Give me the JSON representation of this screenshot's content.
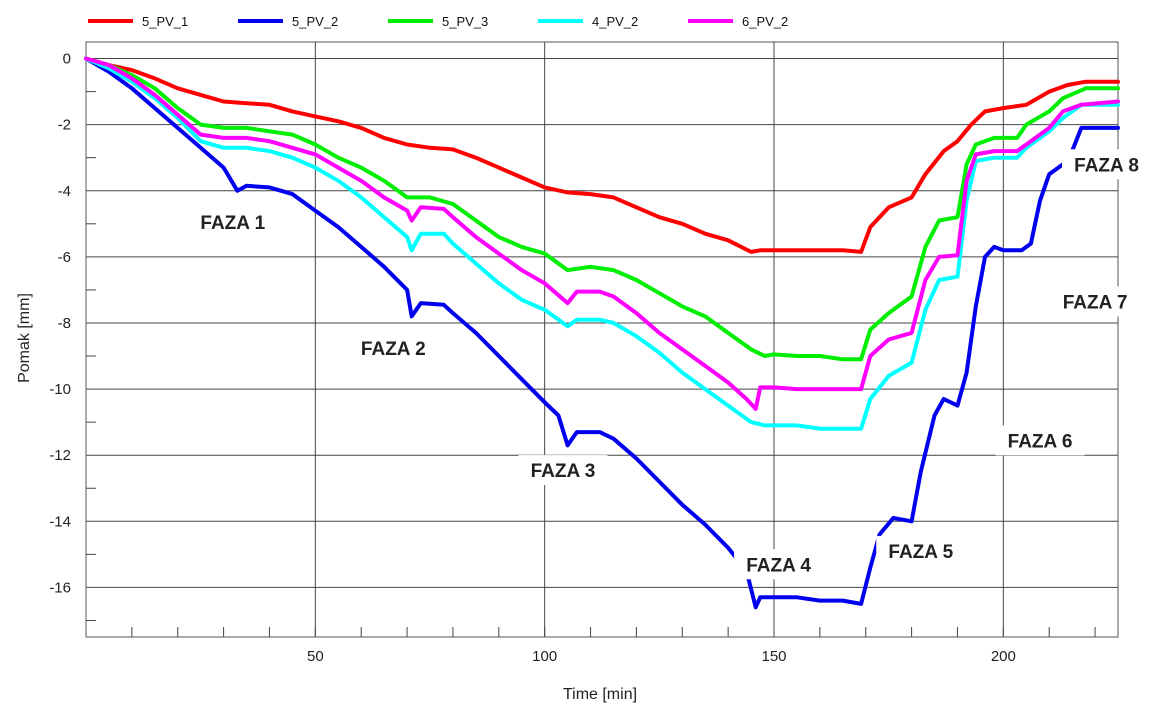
{
  "chart_data": {
    "type": "line",
    "xlabel": "Time  [min]",
    "ylabel": "Pomak  [mm]",
    "xlim": [
      0,
      225
    ],
    "ylim": [
      -17.5,
      0.5
    ],
    "x_ticks": [
      50,
      100,
      150,
      200
    ],
    "y_ticks": [
      0,
      -2,
      -4,
      -6,
      -8,
      -10,
      -12,
      -14,
      -16
    ],
    "grid": true,
    "legend_position": "top",
    "series": [
      {
        "name": "5_PV_1",
        "color": "#ff0000",
        "points": [
          [
            0,
            0
          ],
          [
            5,
            -0.2
          ],
          [
            10,
            -0.35
          ],
          [
            15,
            -0.6
          ],
          [
            20,
            -0.9
          ],
          [
            25,
            -1.1
          ],
          [
            30,
            -1.3
          ],
          [
            35,
            -1.35
          ],
          [
            40,
            -1.4
          ],
          [
            45,
            -1.6
          ],
          [
            50,
            -1.75
          ],
          [
            55,
            -1.9
          ],
          [
            60,
            -2.1
          ],
          [
            65,
            -2.4
          ],
          [
            70,
            -2.6
          ],
          [
            75,
            -2.7
          ],
          [
            80,
            -2.75
          ],
          [
            85,
            -3.0
          ],
          [
            90,
            -3.3
          ],
          [
            95,
            -3.6
          ],
          [
            100,
            -3.9
          ],
          [
            105,
            -4.05
          ],
          [
            110,
            -4.1
          ],
          [
            115,
            -4.2
          ],
          [
            120,
            -4.5
          ],
          [
            125,
            -4.8
          ],
          [
            130,
            -5.0
          ],
          [
            135,
            -5.3
          ],
          [
            140,
            -5.5
          ],
          [
            145,
            -5.85
          ],
          [
            147,
            -5.8
          ],
          [
            150,
            -5.8
          ],
          [
            155,
            -5.8
          ],
          [
            160,
            -5.8
          ],
          [
            165,
            -5.8
          ],
          [
            169,
            -5.85
          ],
          [
            171,
            -5.1
          ],
          [
            175,
            -4.5
          ],
          [
            180,
            -4.2
          ],
          [
            183,
            -3.5
          ],
          [
            187,
            -2.8
          ],
          [
            190,
            -2.5
          ],
          [
            193,
            -2.0
          ],
          [
            196,
            -1.6
          ],
          [
            200,
            -1.5
          ],
          [
            205,
            -1.4
          ],
          [
            210,
            -1.0
          ],
          [
            214,
            -0.8
          ],
          [
            218,
            -0.7
          ],
          [
            225,
            -0.7
          ]
        ]
      },
      {
        "name": "5_PV_2",
        "color": "#0000ee",
        "points": [
          [
            0,
            0
          ],
          [
            5,
            -0.4
          ],
          [
            10,
            -0.9
          ],
          [
            15,
            -1.5
          ],
          [
            20,
            -2.1
          ],
          [
            25,
            -2.7
          ],
          [
            30,
            -3.3
          ],
          [
            33,
            -4.0
          ],
          [
            35,
            -3.85
          ],
          [
            40,
            -3.9
          ],
          [
            45,
            -4.1
          ],
          [
            50,
            -4.6
          ],
          [
            55,
            -5.1
          ],
          [
            60,
            -5.7
          ],
          [
            65,
            -6.3
          ],
          [
            70,
            -7.0
          ],
          [
            71,
            -7.8
          ],
          [
            73,
            -7.4
          ],
          [
            78,
            -7.45
          ],
          [
            80,
            -7.7
          ],
          [
            85,
            -8.3
          ],
          [
            90,
            -9.0
          ],
          [
            95,
            -9.7
          ],
          [
            100,
            -10.4
          ],
          [
            103,
            -10.8
          ],
          [
            105,
            -11.7
          ],
          [
            107,
            -11.3
          ],
          [
            112,
            -11.3
          ],
          [
            115,
            -11.5
          ],
          [
            120,
            -12.1
          ],
          [
            125,
            -12.8
          ],
          [
            130,
            -13.5
          ],
          [
            135,
            -14.1
          ],
          [
            140,
            -14.8
          ],
          [
            144,
            -15.5
          ],
          [
            146,
            -16.6
          ],
          [
            147,
            -16.3
          ],
          [
            150,
            -16.3
          ],
          [
            155,
            -16.3
          ],
          [
            160,
            -16.4
          ],
          [
            165,
            -16.4
          ],
          [
            169,
            -16.5
          ],
          [
            171,
            -15.4
          ],
          [
            173,
            -14.4
          ],
          [
            176,
            -13.9
          ],
          [
            180,
            -14.0
          ],
          [
            182,
            -12.5
          ],
          [
            185,
            -10.8
          ],
          [
            187,
            -10.3
          ],
          [
            190,
            -10.5
          ],
          [
            192,
            -9.5
          ],
          [
            194,
            -7.5
          ],
          [
            196,
            -6.0
          ],
          [
            198,
            -5.7
          ],
          [
            200,
            -5.8
          ],
          [
            204,
            -5.8
          ],
          [
            206,
            -5.6
          ],
          [
            208,
            -4.3
          ],
          [
            210,
            -3.5
          ],
          [
            213,
            -3.2
          ],
          [
            215,
            -2.8
          ],
          [
            217,
            -2.1
          ],
          [
            225,
            -2.1
          ]
        ]
      },
      {
        "name": "5_PV_3",
        "color": "#00ee00",
        "points": [
          [
            0,
            0
          ],
          [
            5,
            -0.2
          ],
          [
            10,
            -0.5
          ],
          [
            15,
            -0.9
          ],
          [
            20,
            -1.5
          ],
          [
            25,
            -2.0
          ],
          [
            30,
            -2.1
          ],
          [
            35,
            -2.1
          ],
          [
            40,
            -2.2
          ],
          [
            45,
            -2.3
          ],
          [
            50,
            -2.6
          ],
          [
            55,
            -3.0
          ],
          [
            60,
            -3.3
          ],
          [
            65,
            -3.7
          ],
          [
            70,
            -4.2
          ],
          [
            75,
            -4.2
          ],
          [
            80,
            -4.4
          ],
          [
            85,
            -4.9
          ],
          [
            90,
            -5.4
          ],
          [
            95,
            -5.7
          ],
          [
            100,
            -5.9
          ],
          [
            105,
            -6.4
          ],
          [
            110,
            -6.3
          ],
          [
            115,
            -6.4
          ],
          [
            120,
            -6.7
          ],
          [
            125,
            -7.1
          ],
          [
            130,
            -7.5
          ],
          [
            135,
            -7.8
          ],
          [
            140,
            -8.3
          ],
          [
            145,
            -8.8
          ],
          [
            148,
            -9.0
          ],
          [
            150,
            -8.95
          ],
          [
            155,
            -9.0
          ],
          [
            160,
            -9.0
          ],
          [
            165,
            -9.1
          ],
          [
            169,
            -9.1
          ],
          [
            171,
            -8.2
          ],
          [
            175,
            -7.7
          ],
          [
            180,
            -7.2
          ],
          [
            183,
            -5.7
          ],
          [
            186,
            -4.9
          ],
          [
            190,
            -4.8
          ],
          [
            192,
            -3.2
          ],
          [
            194,
            -2.6
          ],
          [
            198,
            -2.4
          ],
          [
            203,
            -2.4
          ],
          [
            205,
            -2.0
          ],
          [
            210,
            -1.6
          ],
          [
            213,
            -1.2
          ],
          [
            218,
            -0.9
          ],
          [
            225,
            -0.9
          ]
        ]
      },
      {
        "name": "4_PV_2",
        "color": "#00ffff",
        "points": [
          [
            0,
            0
          ],
          [
            5,
            -0.3
          ],
          [
            10,
            -0.7
          ],
          [
            15,
            -1.2
          ],
          [
            20,
            -1.8
          ],
          [
            25,
            -2.5
          ],
          [
            30,
            -2.7
          ],
          [
            35,
            -2.7
          ],
          [
            40,
            -2.8
          ],
          [
            45,
            -3.0
          ],
          [
            50,
            -3.3
          ],
          [
            55,
            -3.7
          ],
          [
            60,
            -4.2
          ],
          [
            65,
            -4.8
          ],
          [
            70,
            -5.4
          ],
          [
            71,
            -5.8
          ],
          [
            73,
            -5.3
          ],
          [
            78,
            -5.3
          ],
          [
            80,
            -5.6
          ],
          [
            85,
            -6.2
          ],
          [
            90,
            -6.8
          ],
          [
            95,
            -7.3
          ],
          [
            100,
            -7.6
          ],
          [
            105,
            -8.1
          ],
          [
            107,
            -7.9
          ],
          [
            112,
            -7.9
          ],
          [
            115,
            -8.0
          ],
          [
            120,
            -8.4
          ],
          [
            125,
            -8.9
          ],
          [
            130,
            -9.5
          ],
          [
            135,
            -10.0
          ],
          [
            140,
            -10.5
          ],
          [
            145,
            -11.0
          ],
          [
            148,
            -11.1
          ],
          [
            150,
            -11.1
          ],
          [
            155,
            -11.1
          ],
          [
            160,
            -11.2
          ],
          [
            165,
            -11.2
          ],
          [
            169,
            -11.2
          ],
          [
            171,
            -10.3
          ],
          [
            175,
            -9.6
          ],
          [
            180,
            -9.2
          ],
          [
            183,
            -7.6
          ],
          [
            186,
            -6.7
          ],
          [
            190,
            -6.6
          ],
          [
            192,
            -4.3
          ],
          [
            194,
            -3.1
          ],
          [
            198,
            -3.0
          ],
          [
            203,
            -3.0
          ],
          [
            205,
            -2.7
          ],
          [
            210,
            -2.2
          ],
          [
            213,
            -1.8
          ],
          [
            217,
            -1.4
          ],
          [
            225,
            -1.4
          ]
        ]
      },
      {
        "name": "6_PV_2",
        "color": "#ff00ff",
        "points": [
          [
            0,
            0
          ],
          [
            5,
            -0.2
          ],
          [
            10,
            -0.6
          ],
          [
            15,
            -1.1
          ],
          [
            20,
            -1.7
          ],
          [
            25,
            -2.3
          ],
          [
            30,
            -2.4
          ],
          [
            35,
            -2.4
          ],
          [
            40,
            -2.5
          ],
          [
            45,
            -2.7
          ],
          [
            50,
            -2.9
          ],
          [
            55,
            -3.3
          ],
          [
            60,
            -3.7
          ],
          [
            65,
            -4.2
          ],
          [
            70,
            -4.6
          ],
          [
            71,
            -4.9
          ],
          [
            73,
            -4.5
          ],
          [
            78,
            -4.55
          ],
          [
            80,
            -4.8
          ],
          [
            85,
            -5.4
          ],
          [
            90,
            -5.9
          ],
          [
            95,
            -6.4
          ],
          [
            100,
            -6.8
          ],
          [
            105,
            -7.4
          ],
          [
            107,
            -7.05
          ],
          [
            112,
            -7.05
          ],
          [
            115,
            -7.2
          ],
          [
            120,
            -7.7
          ],
          [
            125,
            -8.3
          ],
          [
            130,
            -8.8
          ],
          [
            135,
            -9.3
          ],
          [
            140,
            -9.8
          ],
          [
            144,
            -10.3
          ],
          [
            146,
            -10.6
          ],
          [
            147,
            -9.95
          ],
          [
            150,
            -9.95
          ],
          [
            155,
            -10.0
          ],
          [
            160,
            -10.0
          ],
          [
            165,
            -10.0
          ],
          [
            169,
            -10.0
          ],
          [
            171,
            -9.0
          ],
          [
            175,
            -8.5
          ],
          [
            180,
            -8.3
          ],
          [
            183,
            -6.7
          ],
          [
            186,
            -6.0
          ],
          [
            190,
            -5.95
          ],
          [
            192,
            -3.7
          ],
          [
            194,
            -2.9
          ],
          [
            198,
            -2.8
          ],
          [
            203,
            -2.8
          ],
          [
            205,
            -2.6
          ],
          [
            210,
            -2.1
          ],
          [
            213,
            -1.6
          ],
          [
            217,
            -1.4
          ],
          [
            225,
            -1.3
          ]
        ]
      }
    ],
    "annotations": [
      {
        "text": "FAZA 1",
        "x": 32,
        "y": -4.95
      },
      {
        "text": "FAZA 2",
        "x": 67,
        "y": -8.75
      },
      {
        "text": "FAZA 3",
        "x": 104,
        "y": -12.45
      },
      {
        "text": "FAZA 4",
        "x": 151,
        "y": -15.3
      },
      {
        "text": "FAZA 5",
        "x": 182,
        "y": -14.9
      },
      {
        "text": "FAZA 6",
        "x": 208,
        "y": -11.55
      },
      {
        "text": "FAZA 7",
        "x": 220,
        "y": -7.35
      },
      {
        "text": "FAZA 8",
        "x": 222.5,
        "y": -3.2
      }
    ]
  }
}
